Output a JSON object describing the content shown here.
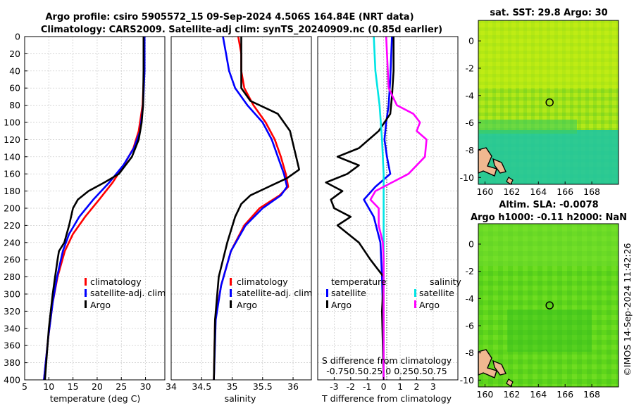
{
  "title_line1": "Argo profile: csiro 5905572_15 09-Sep-2024 4.506S 164.84E (NRT data)",
  "title_line2": "Climatology: CARS2009. Satellite-adj clim: synTS_20240909.nc (0.85d earlier)",
  "side_label": "©IMOS 14-Sep-2024 11:42:26",
  "colors": {
    "climatology": "#ff0000",
    "satellite": "#0000ff",
    "argo": "#000000",
    "sat_salinity": "#00e5e5",
    "argo_salinity": "#ff00ff"
  },
  "chart_data": [
    {
      "type": "line",
      "name": "temperature",
      "xlabel": "temperature (deg C)",
      "xlim": [
        5,
        34
      ],
      "xticks": [
        5,
        10,
        15,
        20,
        25,
        30
      ],
      "ylim": [
        0,
        400
      ],
      "yticks": [
        0,
        20,
        40,
        60,
        80,
        100,
        120,
        140,
        160,
        180,
        200,
        220,
        240,
        260,
        280,
        300,
        320,
        340,
        360,
        380,
        400
      ],
      "legend": [
        "climatology",
        "satellite-adj. clim",
        "Argo"
      ],
      "series": [
        {
          "name": "climatology",
          "color": "#ff0000",
          "depth": [
            0,
            40,
            80,
            110,
            130,
            150,
            170,
            190,
            210,
            230,
            250,
            280,
            310,
            350,
            400
          ],
          "values": [
            29.8,
            29.7,
            29.4,
            28.6,
            27.5,
            25.5,
            23.2,
            20.4,
            17.5,
            15,
            13.3,
            11.8,
            10.8,
            9.9,
            9
          ]
        },
        {
          "name": "satellite-adj. clim",
          "color": "#0000ff",
          "depth": [
            0,
            40,
            80,
            110,
            130,
            150,
            170,
            190,
            210,
            230,
            250,
            280,
            310,
            350,
            400
          ],
          "values": [
            29.8,
            29.8,
            29.5,
            28.9,
            27.6,
            25.4,
            22.5,
            19.2,
            16.3,
            14.2,
            12.9,
            11.7,
            10.8,
            9.9,
            9
          ]
        },
        {
          "name": "Argo",
          "color": "#000000",
          "depth": [
            0,
            40,
            80,
            100,
            120,
            140,
            160,
            170,
            180,
            190,
            200,
            220,
            240,
            250,
            260,
            280,
            300,
            340,
            400
          ],
          "values": [
            29.6,
            29.6,
            29.5,
            29.2,
            28.6,
            27.2,
            24.5,
            21.5,
            18.2,
            16,
            15,
            14.2,
            13.2,
            12.1,
            11.8,
            11.3,
            10.8,
            10,
            9.2
          ]
        }
      ]
    },
    {
      "type": "line",
      "name": "salinity",
      "xlabel": "salinity",
      "xlim": [
        34,
        36.3
      ],
      "xticks": [
        34,
        34.5,
        35,
        35.5,
        36
      ],
      "xtick_labels": [
        "34",
        "34.5",
        "35",
        "35.5",
        "36"
      ],
      "ylim": [
        0,
        400
      ],
      "legend": [
        "climatology",
        "satellite-adj. clim",
        "Argo"
      ],
      "series": [
        {
          "name": "climatology",
          "color": "#ff0000",
          "depth": [
            0,
            20,
            40,
            60,
            80,
            100,
            120,
            140,
            160,
            175,
            185,
            200,
            220,
            250,
            290,
            330,
            400
          ],
          "values": [
            35.1,
            35.15,
            35.15,
            35.2,
            35.35,
            35.55,
            35.7,
            35.8,
            35.88,
            35.92,
            35.78,
            35.45,
            35.2,
            34.98,
            34.82,
            34.72,
            34.7
          ]
        },
        {
          "name": "satellite-adj. clim",
          "color": "#0000ff",
          "depth": [
            0,
            20,
            40,
            60,
            80,
            100,
            120,
            140,
            160,
            175,
            185,
            200,
            220,
            250,
            290,
            330,
            400
          ],
          "values": [
            34.85,
            34.9,
            34.95,
            35.05,
            35.25,
            35.5,
            35.65,
            35.75,
            35.85,
            35.9,
            35.8,
            35.5,
            35.22,
            34.98,
            34.82,
            34.73,
            34.7
          ]
        },
        {
          "name": "Argo",
          "color": "#000000",
          "depth": [
            0,
            30,
            60,
            75,
            90,
            100,
            110,
            125,
            140,
            155,
            165,
            175,
            185,
            195,
            210,
            240,
            280,
            330,
            400
          ],
          "values": [
            35.15,
            35.15,
            35.15,
            35.3,
            35.75,
            35.85,
            35.95,
            36.0,
            36.05,
            36.1,
            35.9,
            35.6,
            35.3,
            35.15,
            35.05,
            34.92,
            34.78,
            34.72,
            34.7
          ]
        }
      ]
    },
    {
      "type": "line",
      "name": "differences",
      "xlabel": "T difference from climatology",
      "xlim": [
        -4,
        4.5
      ],
      "xticks": [
        -3,
        -2,
        -1,
        0,
        1,
        2,
        3
      ],
      "ylim": [
        0,
        400
      ],
      "top_axis_label": "S difference from climatology",
      "top_tick_labels": "-0.750.50.25  0  0.250.50.75",
      "legend_left_title": "temperature",
      "legend_right_title": "salinity",
      "legend_left": [
        "satellite",
        "Argo"
      ],
      "legend_right": [
        "satellite",
        "Argo"
      ],
      "series": [
        {
          "name": "temperature satellite",
          "color": "#0000ff",
          "depth": [
            0,
            50,
            80,
            100,
            120,
            140,
            160,
            175,
            190,
            210,
            240,
            280,
            320,
            400
          ],
          "values": [
            0.5,
            0.4,
            0.3,
            0.15,
            0.05,
            0.2,
            0.4,
            -0.5,
            -1.2,
            -0.6,
            -0.2,
            -0.1,
            -0.05,
            0
          ]
        },
        {
          "name": "temperature Argo",
          "color": "#000000",
          "depth": [
            0,
            40,
            70,
            90,
            110,
            130,
            140,
            150,
            160,
            170,
            180,
            190,
            200,
            210,
            220,
            240,
            260,
            280,
            320,
            400
          ],
          "values": [
            0.6,
            0.6,
            0.5,
            0.4,
            -0.3,
            -1.5,
            -2.8,
            -1.5,
            -2.2,
            -3.5,
            -2.5,
            -3.2,
            -3.0,
            -2.0,
            -2.8,
            -1.5,
            -0.8,
            0.0,
            -0.1,
            0
          ]
        },
        {
          "name": "salinity satellite",
          "color": "#00e5e5",
          "depth": [
            0,
            40,
            80,
            120,
            160,
            200,
            240,
            280,
            320,
            400
          ],
          "values": [
            -0.6,
            -0.5,
            -0.25,
            -0.1,
            0.0,
            0.0,
            0.0,
            0.0,
            0.0,
            0.0
          ]
        },
        {
          "name": "salinity Argo",
          "color": "#ff00ff",
          "depth": [
            0,
            60,
            80,
            90,
            100,
            110,
            120,
            140,
            160,
            170,
            180,
            190,
            200,
            220,
            240,
            260,
            300,
            400
          ],
          "values": [
            0.15,
            0.3,
            0.8,
            1.8,
            2.2,
            2.0,
            2.6,
            2.5,
            1.5,
            0.5,
            -0.5,
            -0.8,
            -0.3,
            -0.3,
            -0.05,
            0.0,
            0.0,
            0.0
          ]
        }
      ]
    },
    {
      "type": "heatmap",
      "name": "sst map",
      "title": "sat. SST: 29.8 Argo: 30",
      "xlim": [
        159.5,
        170
      ],
      "ylim": [
        -10.5,
        1.5
      ],
      "xtick_labels": [
        "160",
        "162",
        "164",
        "166",
        "168"
      ],
      "ytick_labels": [
        "0",
        "-2",
        "-4",
        "-6",
        "-8",
        "-10"
      ],
      "marker": {
        "lon": 164.84,
        "lat": -4.506
      }
    },
    {
      "type": "heatmap",
      "name": "sla map",
      "title_line1": "Altim. SLA: -0.0078",
      "title_line2": "Argo h1000: -0.11 h2000: NaN",
      "xlim": [
        159.5,
        170
      ],
      "ylim": [
        -10.5,
        1.5
      ],
      "xtick_labels": [
        "160",
        "162",
        "164",
        "166",
        "168"
      ],
      "ytick_labels": [
        "0",
        "-2",
        "-4",
        "-6",
        "-8",
        "-10"
      ],
      "marker": {
        "lon": 164.84,
        "lat": -4.506
      }
    }
  ]
}
